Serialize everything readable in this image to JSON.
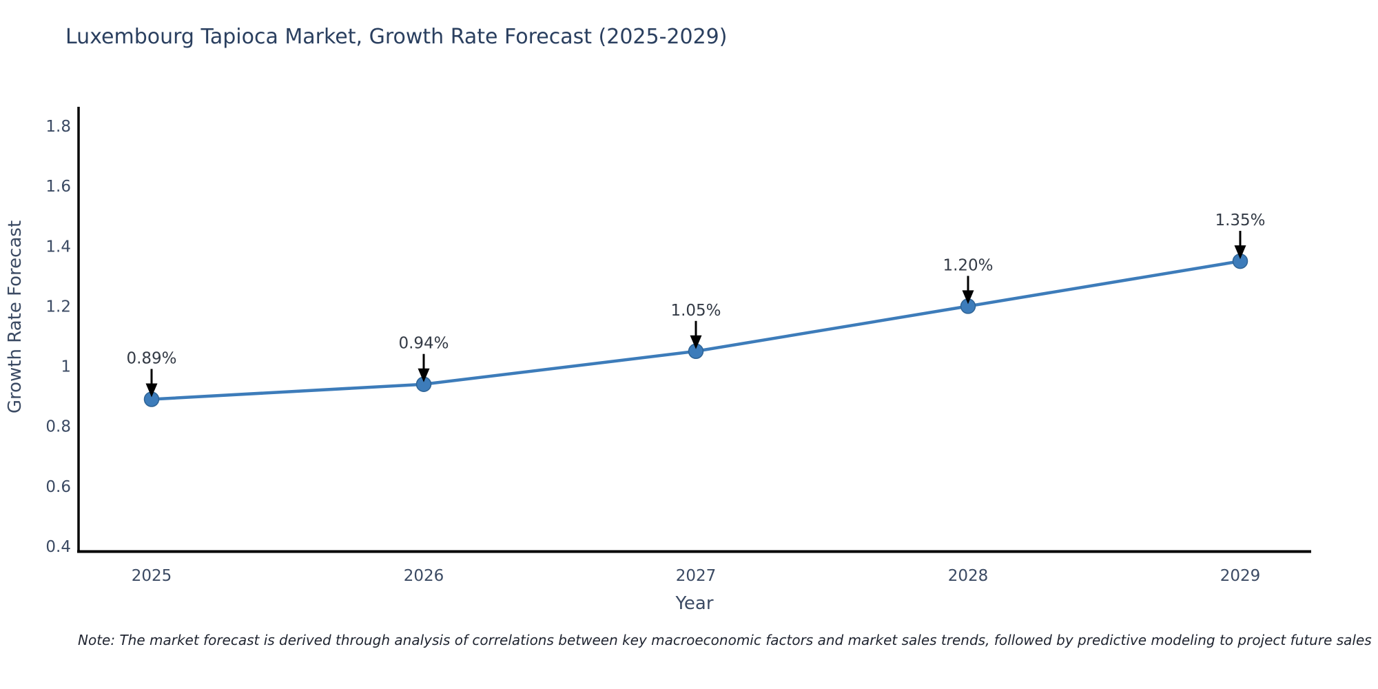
{
  "title": "Luxembourg Tapioca Market, Growth Rate Forecast (2025-2029)",
  "note": "Note: The market forecast is derived through analysis of correlations between key macroeconomic factors and market sales trends, followed by predictive modeling to project future sales",
  "chart_data": {
    "type": "line",
    "title": "Luxembourg Tapioca Market, Growth Rate Forecast (2025-2029)",
    "x": [
      "2025",
      "2026",
      "2027",
      "2028",
      "2029"
    ],
    "series": [
      {
        "name": "Growth Rate Forecast",
        "values": [
          0.89,
          0.94,
          1.05,
          1.2,
          1.35
        ]
      }
    ],
    "point_labels": [
      "0.89%",
      "0.94%",
      "1.05%",
      "1.20%",
      "1.35%"
    ],
    "xlabel": "Year",
    "ylabel": "Growth Rate Forecast",
    "ylim": [
      0.4,
      1.8
    ],
    "yticks": [
      "0.4",
      "0.6",
      "0.8",
      "1",
      "1.2",
      "1.4",
      "1.6",
      "1.8"
    ],
    "grid": false,
    "legend": "none",
    "colors": {
      "line": "#3d7cba",
      "marker": "#3d7cba",
      "marker_edge": "#2e6395",
      "axis": "#000000",
      "title_text": "#2a3f5f",
      "tick_text": "#3b4a63",
      "annotation_text": "#333a45",
      "arrow": "#000000",
      "background": "#ffffff"
    }
  }
}
